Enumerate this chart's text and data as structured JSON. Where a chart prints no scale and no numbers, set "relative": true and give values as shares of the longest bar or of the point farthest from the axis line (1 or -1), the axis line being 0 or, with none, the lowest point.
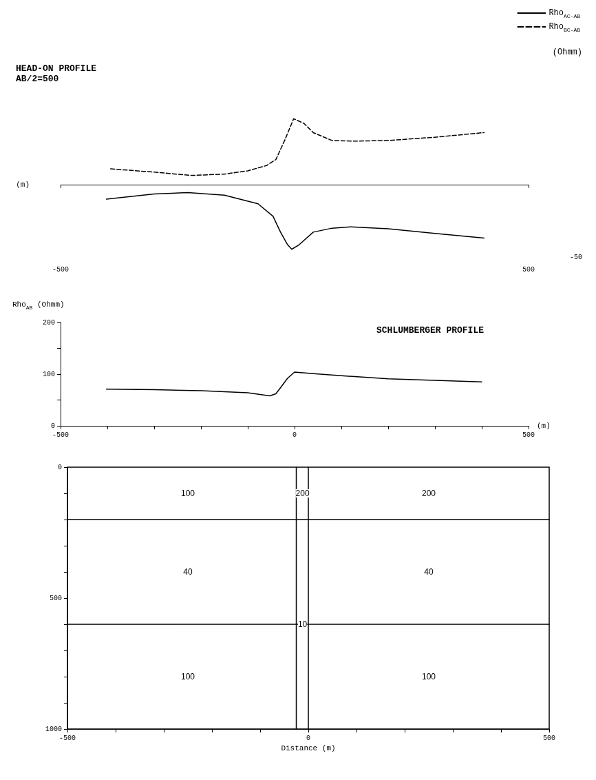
{
  "chart_data": [
    {
      "type": "line",
      "title": "HEAD-ON PROFILE",
      "subtitle": "AB/2=500",
      "xlabel": "(m)",
      "y2label": "(Ohmm)",
      "relative": true,
      "xlim": [
        -500,
        500
      ],
      "xticks": [
        -500,
        500
      ],
      "legend": "top right",
      "marker": "none",
      "grid": false,
      "annotations": [
        "-50"
      ],
      "series": [
        {
          "name": "Rho$_{AC-AB}$",
          "color": "#000000",
          "line_style": "solid",
          "x": [
            -402,
            -300,
            -228,
            -150,
            -78,
            -46,
            -30,
            -15,
            -6,
            10,
            40,
            80,
            120,
            200,
            300,
            405
          ],
          "values": [
            -0.22,
            -0.14,
            -0.12,
            -0.16,
            -0.29,
            -0.48,
            -0.72,
            -0.91,
            -0.98,
            -0.91,
            -0.72,
            -0.66,
            -0.64,
            -0.67,
            -0.74,
            -0.81
          ]
        },
        {
          "name": "Rho$_{BC-AB}$",
          "color": "#000000",
          "line_style": "dashed",
          "x": [
            -393,
            -300,
            -220,
            -150,
            -100,
            -60,
            -40,
            -20,
            -2,
            20,
            40,
            80,
            127,
            200,
            300,
            405
          ],
          "values": [
            0.24,
            0.19,
            0.14,
            0.16,
            0.21,
            0.29,
            0.38,
            0.69,
            1,
            0.93,
            0.79,
            0.67,
            0.66,
            0.67,
            0.72,
            0.79
          ]
        }
      ]
    },
    {
      "type": "line",
      "title": "SCHLUMBERGER PROFILE",
      "xlabel": "(m)",
      "ylabel": "Rho$_{AB}$ (Ohmm)",
      "xlim": [
        -500,
        500
      ],
      "xticks": [
        -500,
        {
          "value": -400,
          "label": null
        },
        {
          "value": -300,
          "label": null
        },
        {
          "value": -200,
          "label": null
        },
        {
          "value": -100,
          "label": null
        },
        0,
        {
          "value": 100,
          "label": null
        },
        {
          "value": 200,
          "label": null
        },
        {
          "value": 300,
          "label": null
        },
        {
          "value": 400,
          "label": null
        },
        500
      ],
      "ylim": [
        0,
        200
      ],
      "yticks": [
        0,
        {
          "value": 50,
          "label": null
        },
        100,
        {
          "value": 150,
          "label": null
        },
        200
      ],
      "marker": "none",
      "grid": false,
      "line_style": "solid",
      "series": [
        {
          "color": "#000000",
          "x": [
            -402,
            -300,
            -200,
            -100,
            -53,
            -40,
            -29,
            -15,
            0,
            40,
            100,
            200,
            300,
            400
          ],
          "values": [
            71,
            70,
            68,
            64,
            58,
            62,
            75,
            92,
            104,
            101,
            97,
            91,
            88,
            85
          ]
        }
      ]
    },
    {
      "type": "line",
      "xlabel": "Distance (m)",
      "marker": "none",
      "line_style": "solid",
      "series": [
        {
          "color": "#000000",
          "x": [
            -500,
            500
          ],
          "values": [
            200,
            200
          ]
        },
        {
          "color": "#000000",
          "x": [
            -500,
            500
          ],
          "values": [
            600,
            600
          ]
        },
        {
          "color": "#000000",
          "x": [
            -25,
            -25
          ],
          "values": [
            0,
            1000
          ]
        },
        {
          "color": "#000000",
          "x": [
            0,
            0
          ],
          "values": [
            0,
            1000
          ]
        }
      ],
      "xlim": [
        -500,
        500
      ],
      "xticks": [
        -500,
        {
          "value": -400,
          "label": null
        },
        {
          "value": -300,
          "label": null
        },
        {
          "value": -200,
          "label": null
        },
        {
          "value": -100,
          "label": null
        },
        0,
        {
          "value": 100,
          "label": null
        },
        {
          "value": 200,
          "label": null
        },
        {
          "value": 300,
          "label": null
        },
        {
          "value": 400,
          "label": null
        },
        500
      ],
      "ylim": [
        1000,
        0
      ],
      "yticks": [
        0,
        {
          "value": 100,
          "label": null
        },
        {
          "value": 200,
          "label": null
        },
        {
          "value": 300,
          "label": null
        },
        {
          "value": 400,
          "label": null
        },
        500,
        {
          "value": 600,
          "label": null
        },
        {
          "value": 700,
          "label": null
        },
        {
          "value": 800,
          "label": null
        },
        {
          "value": 900,
          "label": null
        },
        1000
      ],
      "grid": false,
      "annotations": [
        {
          "text": "100",
          "x": -250,
          "y": 100
        },
        {
          "text": "200",
          "x": -12,
          "y": 100
        },
        {
          "text": "200",
          "x": 250,
          "y": 100
        },
        {
          "text": "40",
          "x": -250,
          "y": 400
        },
        {
          "text": "40",
          "x": 250,
          "y": 400
        },
        {
          "text": "10",
          "x": -12,
          "y": 600
        },
        {
          "text": "100",
          "x": -250,
          "y": 800
        },
        {
          "text": "100",
          "x": 250,
          "y": 800
        }
      ]
    }
  ]
}
